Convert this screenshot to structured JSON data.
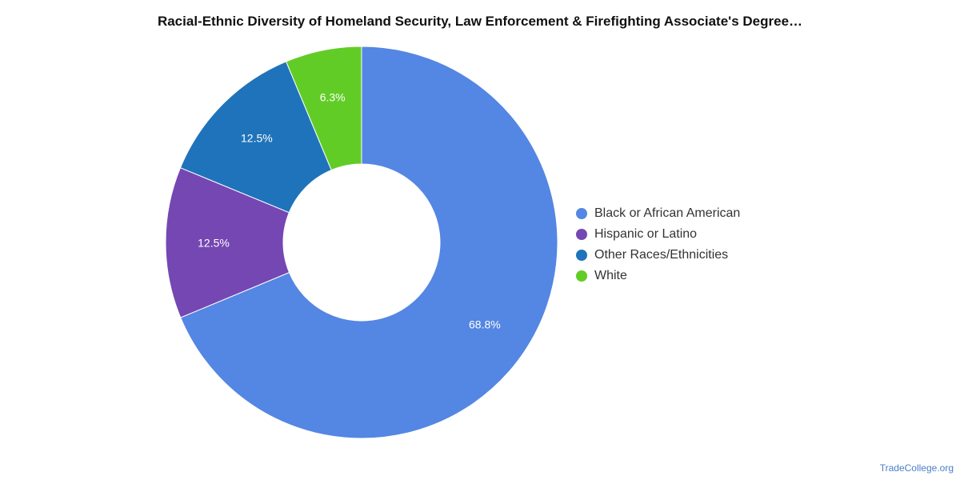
{
  "chart_data": {
    "type": "pie",
    "donut": true,
    "title": "Racial-Ethnic Diversity of Homeland Security, Law Enforcement & Firefighting Associate's Degree…",
    "categories": [
      "Black or African American",
      "Hispanic or Latino",
      "Other Races/Ethnicities",
      "White"
    ],
    "values": [
      68.8,
      12.5,
      12.5,
      6.3
    ],
    "data_labels": [
      "68.8%",
      "12.5%",
      "12.5%",
      "6.3%"
    ],
    "colors": [
      "#5486e3",
      "#7547b2",
      "#1f73bb",
      "#62cc26"
    ],
    "legend_position": "right"
  },
  "source": "TradeCollege.org"
}
